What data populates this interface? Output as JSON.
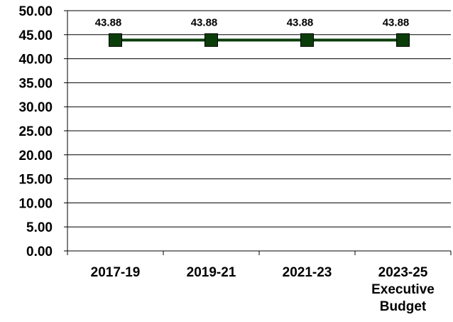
{
  "chart_data": {
    "type": "line",
    "title": "",
    "xlabel": "",
    "ylabel": "",
    "categories": [
      [
        "2017-19"
      ],
      [
        "2019-21"
      ],
      [
        "2021-23"
      ],
      [
        "2023-25",
        "Executive",
        "Budget"
      ]
    ],
    "series": [
      {
        "values": [
          43.88,
          43.88,
          43.88,
          43.88
        ],
        "data_labels": [
          "43.88",
          "43.88",
          "43.88",
          "43.88"
        ],
        "color": "#0b3d0b",
        "marker": "square"
      }
    ],
    "ylim": [
      0,
      50
    ],
    "yticks": [
      "0.00",
      "5.00",
      "10.00",
      "15.00",
      "20.00",
      "25.00",
      "30.00",
      "35.00",
      "40.00",
      "45.00",
      "50.00"
    ],
    "grid": true,
    "legend": "none"
  }
}
